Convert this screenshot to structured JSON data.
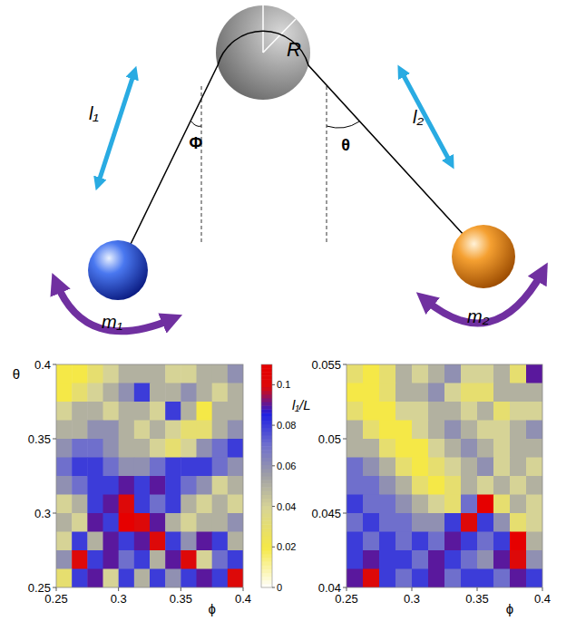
{
  "diagram": {
    "pulley_label": "R",
    "lengths": [
      "l₁",
      "l₂"
    ],
    "angles": [
      "Φ",
      "θ"
    ],
    "masses": [
      "m₁",
      "m₂"
    ]
  },
  "colorbar": {
    "label": "l₁/L",
    "range": [
      0,
      0.11
    ],
    "ticks": [
      0,
      0.02,
      0.04,
      0.06,
      0.08,
      0.1
    ]
  },
  "chart_data": [
    {
      "type": "heatmap",
      "xlabel": "ϕ",
      "ylabel": "θ",
      "xlim": [
        0.25,
        0.4
      ],
      "ylim": [
        0.25,
        0.4
      ],
      "xticks": [
        0.25,
        0.3,
        0.35,
        0.4
      ],
      "yticks": [
        0.25,
        0.3,
        0.35,
        0.4
      ],
      "cells": [
        [
          0.02,
          0.02,
          0.03,
          0.04,
          0.05,
          0.05,
          0.05,
          0.04,
          0.04,
          0.05,
          0.05,
          0.06
        ],
        [
          0.02,
          0.03,
          0.04,
          0.05,
          0.06,
          0.08,
          0.05,
          0.05,
          0.06,
          0.05,
          0.04,
          0.05
        ],
        [
          0.04,
          0.05,
          0.05,
          0.04,
          0.05,
          0.05,
          0.04,
          0.08,
          0.05,
          0.02,
          0.05,
          0.05
        ],
        [
          0.05,
          0.05,
          0.06,
          0.06,
          0.05,
          0.04,
          0.05,
          0.04,
          0.03,
          0.03,
          0.05,
          0.06
        ],
        [
          0.06,
          0.07,
          0.07,
          0.06,
          0.05,
          0.05,
          0.04,
          0.03,
          0.04,
          0.06,
          0.07,
          0.08
        ],
        [
          0.07,
          0.08,
          0.08,
          0.07,
          0.06,
          0.06,
          0.07,
          0.08,
          0.08,
          0.08,
          0.07,
          0.06
        ],
        [
          0.06,
          0.07,
          0.08,
          0.08,
          0.09,
          0.08,
          0.09,
          0.08,
          0.07,
          0.06,
          0.04,
          0.05
        ],
        [
          0.04,
          0.05,
          0.08,
          0.09,
          0.1,
          0.08,
          0.07,
          0.08,
          0.05,
          0.04,
          0.05,
          0.04
        ],
        [
          0.05,
          0.04,
          0.09,
          0.08,
          0.11,
          0.1,
          0.09,
          0.05,
          0.04,
          0.05,
          0.05,
          0.06
        ],
        [
          0.04,
          0.08,
          0.05,
          0.09,
          0.08,
          0.09,
          0.1,
          0.08,
          0.06,
          0.09,
          0.08,
          0.05
        ],
        [
          0.06,
          0.1,
          0.08,
          0.09,
          0.07,
          0.08,
          0.05,
          0.09,
          0.1,
          0.04,
          0.07,
          0.08
        ],
        [
          0.03,
          0.08,
          0.09,
          0.04,
          0.08,
          0.05,
          0.08,
          0.06,
          0.08,
          0.09,
          0.08,
          0.1
        ]
      ]
    },
    {
      "type": "heatmap",
      "xlabel": "ϕ",
      "xlim": [
        0.25,
        0.4
      ],
      "ylim": [
        0.04,
        0.055
      ],
      "xticks": [
        0.25,
        0.3,
        0.35,
        0.4
      ],
      "yticks": [
        0.04,
        0.045,
        0.05,
        0.055
      ],
      "cells": [
        [
          0.03,
          0.02,
          0.03,
          0.05,
          0.04,
          0.05,
          0.06,
          0.04,
          0.04,
          0.05,
          0.03,
          0.09
        ],
        [
          0.02,
          0.02,
          0.03,
          0.05,
          0.05,
          0.06,
          0.04,
          0.03,
          0.03,
          0.05,
          0.05,
          0.05
        ],
        [
          0.03,
          0.02,
          0.02,
          0.04,
          0.04,
          0.05,
          0.05,
          0.04,
          0.05,
          0.03,
          0.04,
          0.04
        ],
        [
          0.05,
          0.03,
          0.02,
          0.02,
          0.04,
          0.05,
          0.06,
          0.05,
          0.04,
          0.04,
          0.05,
          0.06
        ],
        [
          0.05,
          0.05,
          0.03,
          0.02,
          0.02,
          0.04,
          0.05,
          0.06,
          0.05,
          0.04,
          0.05,
          0.05
        ],
        [
          0.07,
          0.06,
          0.05,
          0.03,
          0.02,
          0.03,
          0.04,
          0.05,
          0.06,
          0.04,
          0.05,
          0.04
        ],
        [
          0.07,
          0.07,
          0.06,
          0.05,
          0.03,
          0.02,
          0.03,
          0.05,
          0.04,
          0.05,
          0.04,
          0.05
        ],
        [
          0.08,
          0.07,
          0.07,
          0.06,
          0.05,
          0.04,
          0.03,
          0.07,
          0.11,
          0.03,
          0.05,
          0.04
        ],
        [
          0.07,
          0.08,
          0.07,
          0.07,
          0.06,
          0.06,
          0.08,
          0.1,
          0.08,
          0.06,
          0.03,
          0.04
        ],
        [
          0.08,
          0.07,
          0.08,
          0.07,
          0.08,
          0.07,
          0.09,
          0.08,
          0.07,
          0.08,
          0.11,
          0.05
        ],
        [
          0.08,
          0.09,
          0.08,
          0.08,
          0.07,
          0.09,
          0.08,
          0.07,
          0.06,
          0.09,
          0.1,
          0.06
        ],
        [
          0.09,
          0.1,
          0.08,
          0.07,
          0.08,
          0.09,
          0.07,
          0.08,
          0.08,
          0.07,
          0.09,
          0.08
        ]
      ]
    }
  ]
}
